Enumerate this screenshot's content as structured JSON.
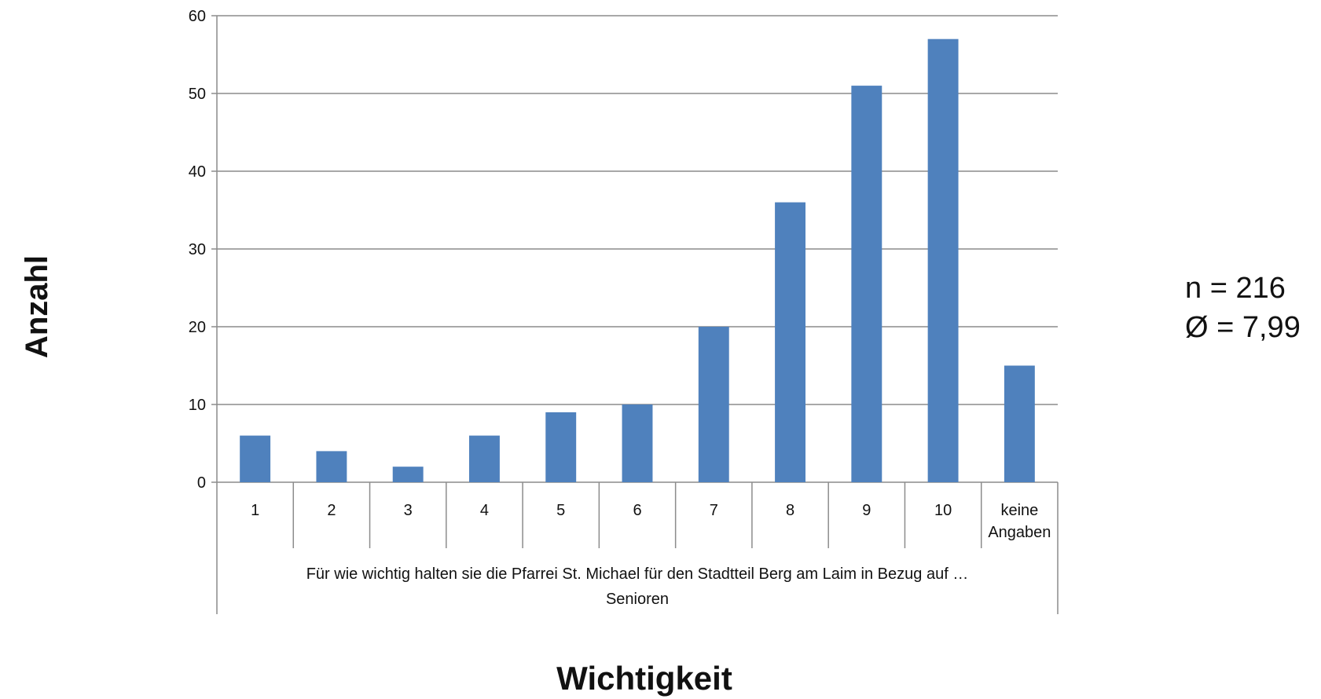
{
  "chart_data": {
    "type": "bar",
    "categories": [
      "1",
      "2",
      "3",
      "4",
      "5",
      "6",
      "7",
      "8",
      "9",
      "10",
      "keine Angaben"
    ],
    "values": [
      6,
      4,
      2,
      6,
      9,
      10,
      20,
      36,
      51,
      57,
      15
    ],
    "group_label_line1": "Für wie wichtig halten sie die Pfarrei St. Michael für den Stadtteil Berg am Laim in Bezug auf …",
    "group_label_line2": "Senioren",
    "xlabel": "Wichtigkeit",
    "ylabel": "Anzahl",
    "ylim": [
      0,
      60
    ],
    "yticks": [
      0,
      10,
      20,
      30,
      40,
      50,
      60
    ],
    "grid": true,
    "legend": "none",
    "bar_color": "#4f81bd",
    "annotation_n": "n = 216",
    "annotation_mean": "Ø = 7,99"
  }
}
